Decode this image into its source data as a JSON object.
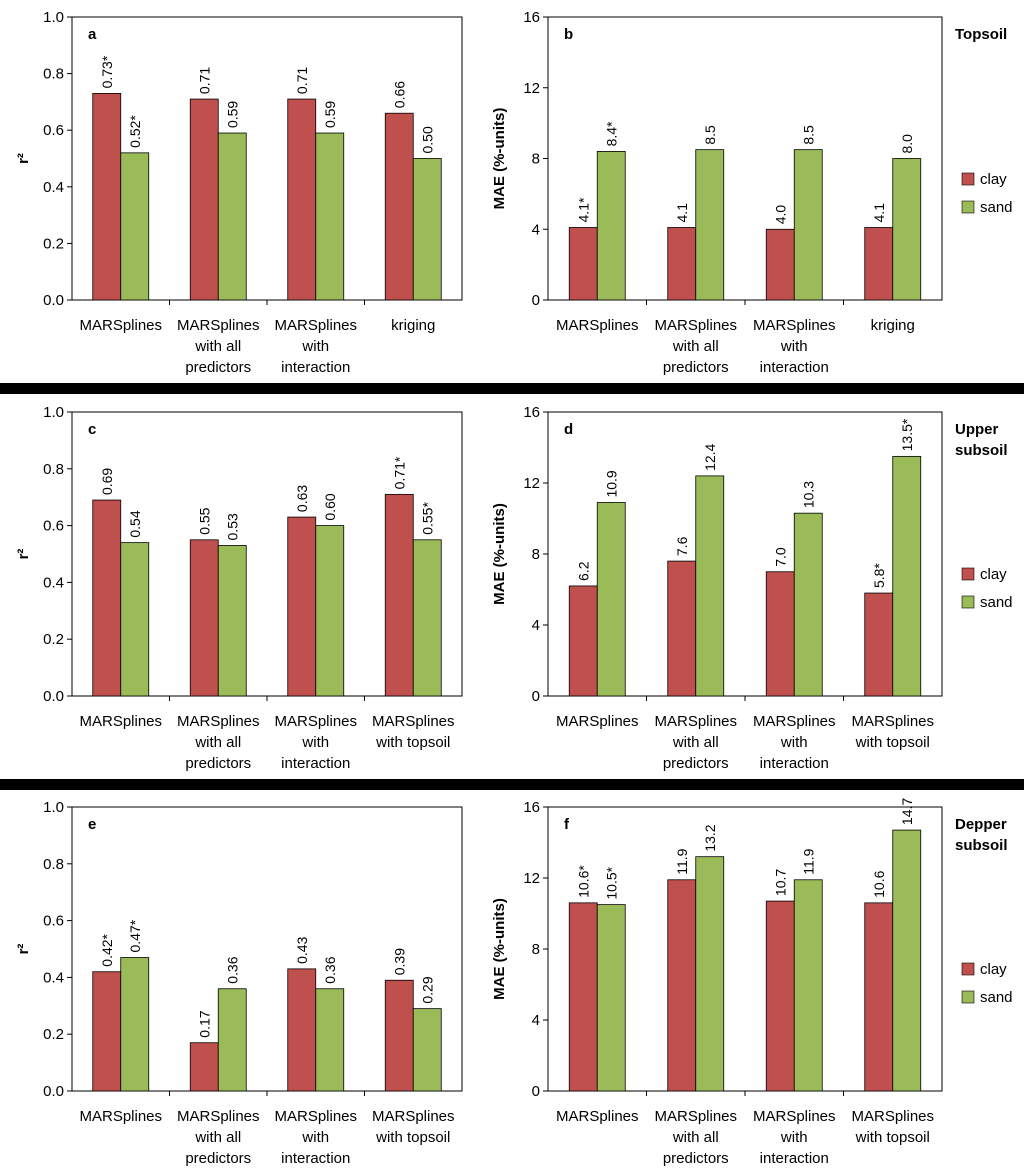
{
  "colors": {
    "clay": "#C0504D",
    "sand": "#9BBB59",
    "edge": "#000000",
    "separator": "#000000"
  },
  "row_labels": [
    [
      "Topsoil"
    ],
    [
      "Upper",
      "subsoil"
    ],
    [
      "Depper",
      "subsoil"
    ]
  ],
  "legend": [
    "clay",
    "sand"
  ],
  "chart_data": [
    {
      "panel": "a",
      "type": "bar",
      "ylabel": "r²",
      "ylim": [
        0,
        1.0
      ],
      "yticks": [
        "0.0",
        "0.2",
        "0.4",
        "0.6",
        "0.8",
        "1.0"
      ],
      "categories": [
        [
          "MARSplines"
        ],
        [
          "MARSplines",
          "with all",
          "predictors"
        ],
        [
          "MARSplines",
          "with",
          "interaction"
        ],
        [
          "kriging"
        ]
      ],
      "series": [
        {
          "name": "clay",
          "values": [
            0.73,
            0.71,
            0.71,
            0.66
          ],
          "labels": [
            "0.73*",
            "0.71",
            "0.71",
            "0.66"
          ]
        },
        {
          "name": "sand",
          "values": [
            0.52,
            0.59,
            0.59,
            0.5
          ],
          "labels": [
            "0.52*",
            "0.59",
            "0.59",
            "0.50"
          ]
        }
      ]
    },
    {
      "panel": "b",
      "type": "bar",
      "ylabel": "MAE (%-units)",
      "ylim": [
        0,
        16
      ],
      "yticks": [
        "0",
        "4",
        "8",
        "12",
        "16"
      ],
      "categories": [
        [
          "MARSplines"
        ],
        [
          "MARSplines",
          "with all",
          "predictors"
        ],
        [
          "MARSplines",
          "with",
          "interaction"
        ],
        [
          "kriging"
        ]
      ],
      "series": [
        {
          "name": "clay",
          "values": [
            4.1,
            4.1,
            4.0,
            4.1
          ],
          "labels": [
            "4.1*",
            "4.1",
            "4.0",
            "4.1"
          ]
        },
        {
          "name": "sand",
          "values": [
            8.4,
            8.5,
            8.5,
            8.0
          ],
          "labels": [
            "8.4*",
            "8.5",
            "8.5",
            "8.0"
          ]
        }
      ]
    },
    {
      "panel": "c",
      "type": "bar",
      "ylabel": "r²",
      "ylim": [
        0,
        1.0
      ],
      "yticks": [
        "0.0",
        "0.2",
        "0.4",
        "0.6",
        "0.8",
        "1.0"
      ],
      "categories": [
        [
          "MARSplines"
        ],
        [
          "MARSplines",
          "with all",
          "predictors"
        ],
        [
          "MARSplines",
          "with",
          "interaction"
        ],
        [
          "MARSplines",
          "with topsoil"
        ]
      ],
      "series": [
        {
          "name": "clay",
          "values": [
            0.69,
            0.55,
            0.63,
            0.71
          ],
          "labels": [
            "0.69",
            "0.55",
            "0.63",
            "0.71*"
          ]
        },
        {
          "name": "sand",
          "values": [
            0.54,
            0.53,
            0.6,
            0.55
          ],
          "labels": [
            "0.54",
            "0.53",
            "0.60",
            "0.55*"
          ]
        }
      ]
    },
    {
      "panel": "d",
      "type": "bar",
      "ylabel": "MAE (%-units)",
      "ylim": [
        0,
        16
      ],
      "yticks": [
        "0",
        "4",
        "8",
        "12",
        "16"
      ],
      "categories": [
        [
          "MARSplines"
        ],
        [
          "MARSplines",
          "with all",
          "predictors"
        ],
        [
          "MARSplines",
          "with",
          "interaction"
        ],
        [
          "MARSplines",
          "with topsoil"
        ]
      ],
      "series": [
        {
          "name": "clay",
          "values": [
            6.2,
            7.6,
            7.0,
            5.8
          ],
          "labels": [
            "6.2",
            "7.6",
            "7.0",
            "5.8*"
          ]
        },
        {
          "name": "sand",
          "values": [
            10.9,
            12.4,
            10.3,
            13.5
          ],
          "labels": [
            "10.9",
            "12.4",
            "10.3",
            "13.5*"
          ]
        }
      ]
    },
    {
      "panel": "e",
      "type": "bar",
      "ylabel": "r²",
      "ylim": [
        0,
        1.0
      ],
      "yticks": [
        "0.0",
        "0.2",
        "0.4",
        "0.6",
        "0.8",
        "1.0"
      ],
      "categories": [
        [
          "MARSplines"
        ],
        [
          "MARSplines",
          "with all",
          "predictors"
        ],
        [
          "MARSplines",
          "with",
          "interaction"
        ],
        [
          "MARSplines",
          "with topsoil"
        ]
      ],
      "series": [
        {
          "name": "clay",
          "values": [
            0.42,
            0.17,
            0.43,
            0.39
          ],
          "labels": [
            "0.42*",
            "0.17",
            "0.43",
            "0.39"
          ]
        },
        {
          "name": "sand",
          "values": [
            0.47,
            0.36,
            0.36,
            0.29
          ],
          "labels": [
            "0.47*",
            "0.36",
            "0.36",
            "0.29"
          ]
        }
      ]
    },
    {
      "panel": "f",
      "type": "bar",
      "ylabel": "MAE (%-units)",
      "ylim": [
        0,
        16
      ],
      "yticks": [
        "0",
        "4",
        "8",
        "12",
        "16"
      ],
      "categories": [
        [
          "MARSplines"
        ],
        [
          "MARSplines",
          "with all",
          "predictors"
        ],
        [
          "MARSplines",
          "with",
          "interaction"
        ],
        [
          "MARSplines",
          "with topsoil"
        ]
      ],
      "series": [
        {
          "name": "clay",
          "values": [
            10.6,
            11.9,
            10.7,
            10.6
          ],
          "labels": [
            "10.6*",
            "11.9",
            "10.7",
            "10.6"
          ]
        },
        {
          "name": "sand",
          "values": [
            10.5,
            13.2,
            11.9,
            14.7
          ],
          "labels": [
            "10.5*",
            "13.2",
            "11.9",
            "14.7"
          ]
        }
      ]
    }
  ]
}
